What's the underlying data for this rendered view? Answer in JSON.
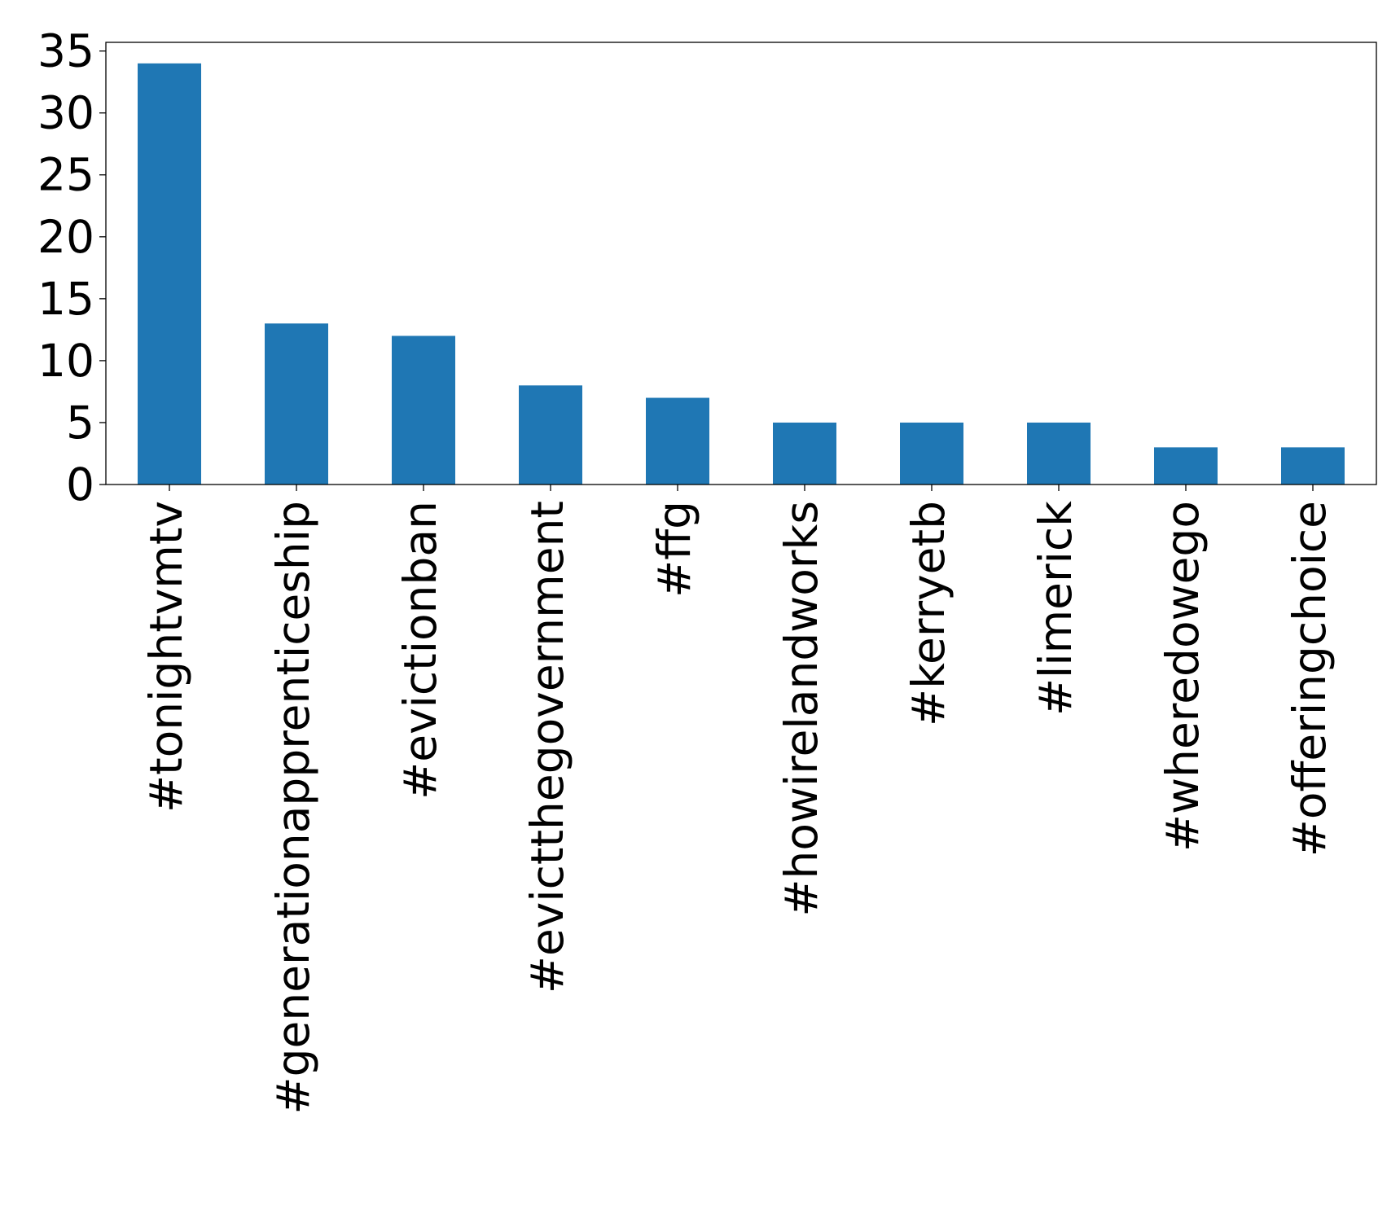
{
  "chart_data": {
    "type": "bar",
    "title": "",
    "xlabel": "",
    "ylabel": "",
    "categories": [
      "#tonightvmtv",
      "#generationapprenticeship",
      "#evictionban",
      "#evictthegovernment",
      "#ffg",
      "#howirelandworks",
      "#kerryetb",
      "#limerick",
      "#wheredowego",
      "#offeringchoice"
    ],
    "values": [
      34,
      13,
      12,
      8,
      7,
      5,
      5,
      5,
      3,
      3
    ],
    "ylim": [
      0,
      35.7
    ],
    "yticks": [
      0,
      5,
      10,
      15,
      20,
      25,
      30,
      35
    ],
    "bar_color": "#1f77b4",
    "grid": false,
    "legend": "none"
  }
}
